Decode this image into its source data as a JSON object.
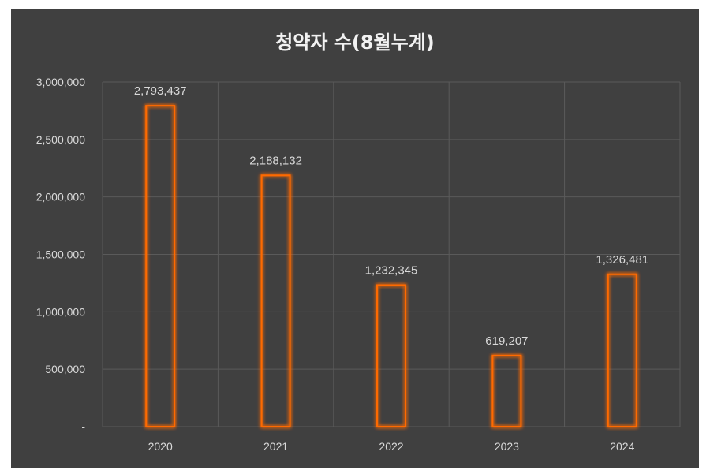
{
  "chart_data": {
    "type": "bar",
    "title": "청약자 수(8월누계)",
    "categories": [
      "2020",
      "2021",
      "2022",
      "2023",
      "2024"
    ],
    "values": [
      2793437,
      2188132,
      1232345,
      619207,
      1326481
    ],
    "data_labels": [
      "2,793,437",
      "2,188,132",
      "1,232,345",
      "619,207",
      "1,326,481"
    ],
    "yticks": [
      0,
      500000,
      1000000,
      1500000,
      2000000,
      2500000,
      3000000
    ],
    "ytick_labels": [
      "-",
      "500,000",
      "1,000,000",
      "1,500,000",
      "2,000,000",
      "2,500,000",
      "3,000,000"
    ],
    "ylim": [
      0,
      3000000
    ],
    "xlabel": "",
    "ylabel": "",
    "grid": true,
    "legend": "none",
    "colors": {
      "background": "#404040",
      "bar_outline": "#ff6a00",
      "bar_glow": "#ff8c1a",
      "text": "#d9d9d9",
      "title": "#f2f2f2",
      "grid": "#5a5a5a"
    }
  }
}
